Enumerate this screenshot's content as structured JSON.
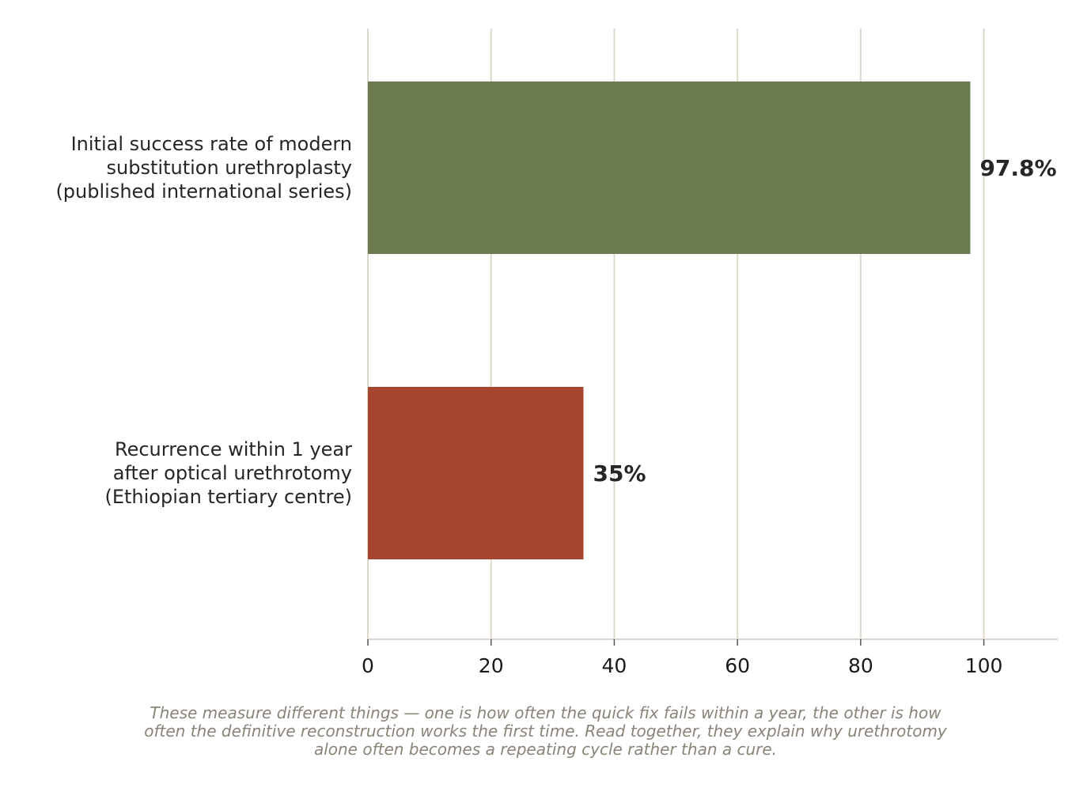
{
  "chart_data": {
    "type": "bar",
    "orientation": "horizontal",
    "categories": [
      [
        "Initial success rate of modern",
        "substitution urethroplasty",
        "(published international series)"
      ],
      [
        "Recurrence within 1 year",
        "after optical urethrotomy",
        "(Ethiopian tertiary centre)"
      ]
    ],
    "values": [
      97.8,
      35
    ],
    "value_labels": [
      "97.8%",
      "35%"
    ],
    "colors": [
      "#6b7b4f",
      "#a5452e"
    ],
    "xlim": [
      0,
      112
    ],
    "xticks": [
      0,
      20,
      40,
      60,
      80,
      100
    ],
    "grid": "vertical",
    "gridColor": "#dcd8cc",
    "axisColor": "#ddd4cc",
    "title": "",
    "xlabel": "",
    "ylabel": ""
  },
  "caption": {
    "lines": [
      "These measure different things — one is how often the quick fix fails within a year, the other is how",
      "often the definitive reconstruction works the first time. Read together, they explain why urethrotomy",
      "alone often becomes a repeating cycle rather than a cure."
    ]
  }
}
